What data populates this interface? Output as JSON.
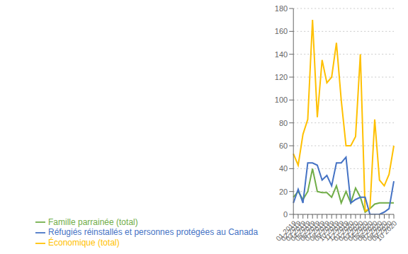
{
  "chart_data": {
    "type": "line",
    "categories": [
      "01 2019",
      "02 2019",
      "03 2019",
      "04 2019",
      "05 2019",
      "06 2019",
      "07 2019",
      "08 2019",
      "09 2019",
      "10 2019",
      "11 2019",
      "12 2019",
      "01 2020",
      "02 2020",
      "03 2020",
      "04 2020",
      "05 2020",
      "06 2020",
      "07 2020",
      "08 2020",
      "09 2020",
      "10 2020"
    ],
    "series": [
      {
        "name": "Famille parrainée (total)",
        "color": "#70ad47",
        "values": [
          15,
          20,
          13,
          20,
          40,
          20,
          19,
          19,
          15,
          25,
          10,
          20,
          10,
          23,
          15,
          2,
          5,
          9,
          10,
          10,
          10,
          10
        ]
      },
      {
        "name": "Économique (total)",
        "color": "#ffc000",
        "values": [
          53,
          43,
          70,
          83,
          170,
          85,
          135,
          115,
          120,
          150,
          100,
          60,
          60,
          68,
          140,
          3,
          5,
          83,
          30,
          25,
          35,
          60
        ]
      },
      {
        "name": "Réfugiés réinstallés et personnes protégées au Canada",
        "color": "#4472c4",
        "values": [
          10,
          22,
          10,
          45,
          45,
          43,
          30,
          34,
          25,
          45,
          45,
          50,
          10,
          13,
          15,
          15,
          0,
          0,
          0,
          2,
          5,
          29
        ]
      }
    ],
    "ylim": [
      0,
      180
    ],
    "yticks": [
      0,
      20,
      40,
      60,
      80,
      100,
      120,
      140,
      160,
      180
    ],
    "grid": true,
    "legend": "bottom"
  }
}
